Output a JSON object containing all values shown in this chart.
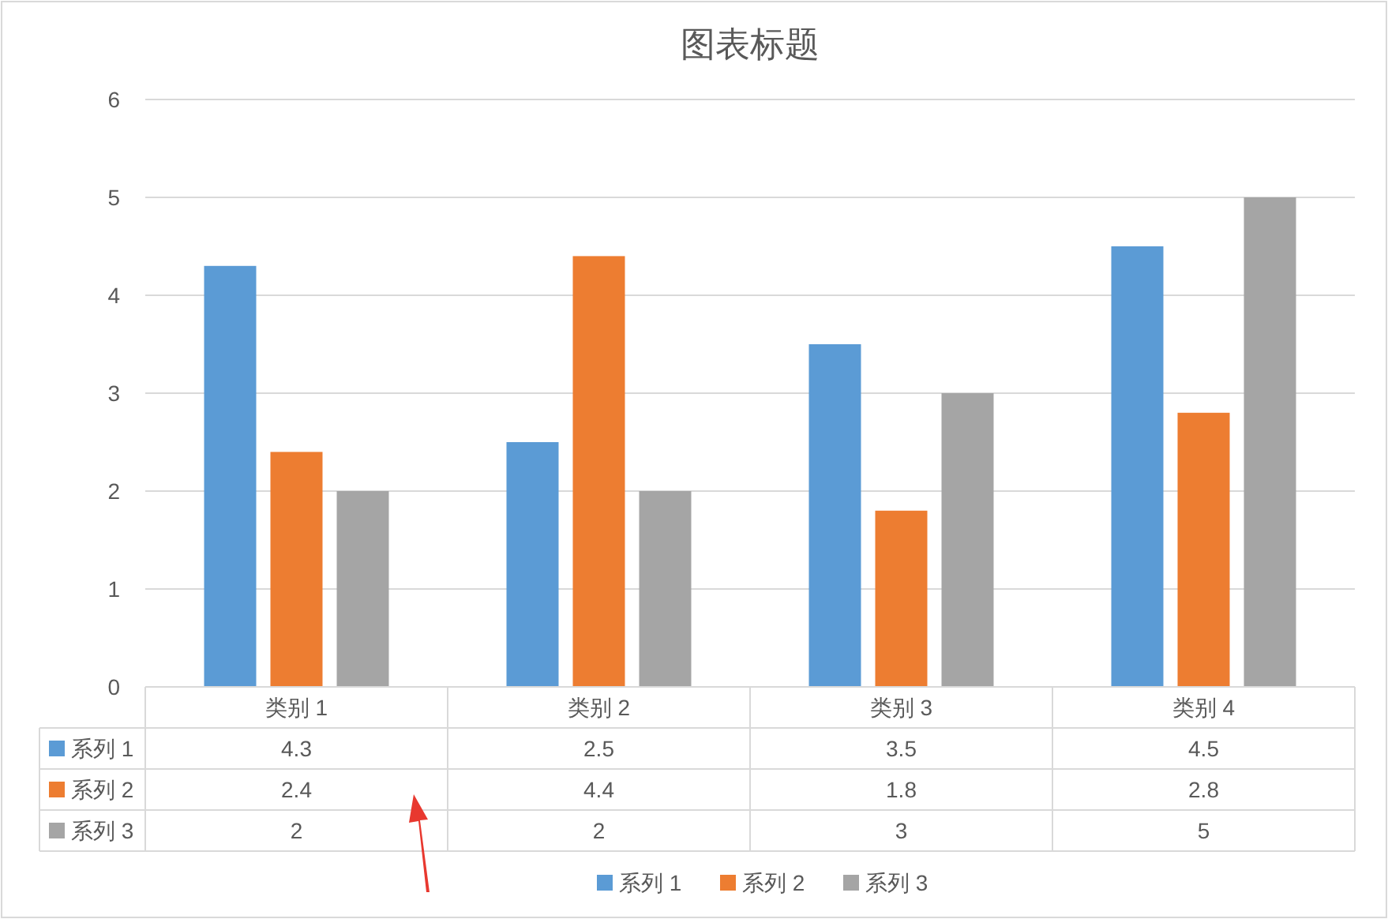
{
  "chart_data": {
    "type": "bar",
    "title": "图表标题",
    "categories": [
      "类别 1",
      "类别 2",
      "类别 3",
      "类别 4"
    ],
    "series": [
      {
        "name": "系列 1",
        "color": "#5b9bd5",
        "values": [
          4.3,
          2.5,
          3.5,
          4.5
        ]
      },
      {
        "name": "系列 2",
        "color": "#ed7d31",
        "values": [
          2.4,
          4.4,
          1.8,
          2.8
        ]
      },
      {
        "name": "系列 3",
        "color": "#a5a5a5",
        "values": [
          2,
          2,
          3,
          5
        ]
      }
    ],
    "ylim": [
      0,
      6
    ],
    "yticks": [
      0,
      1,
      2,
      3,
      4,
      5,
      6
    ],
    "grid": "y",
    "legend": "bottom",
    "data_labels": true
  }
}
